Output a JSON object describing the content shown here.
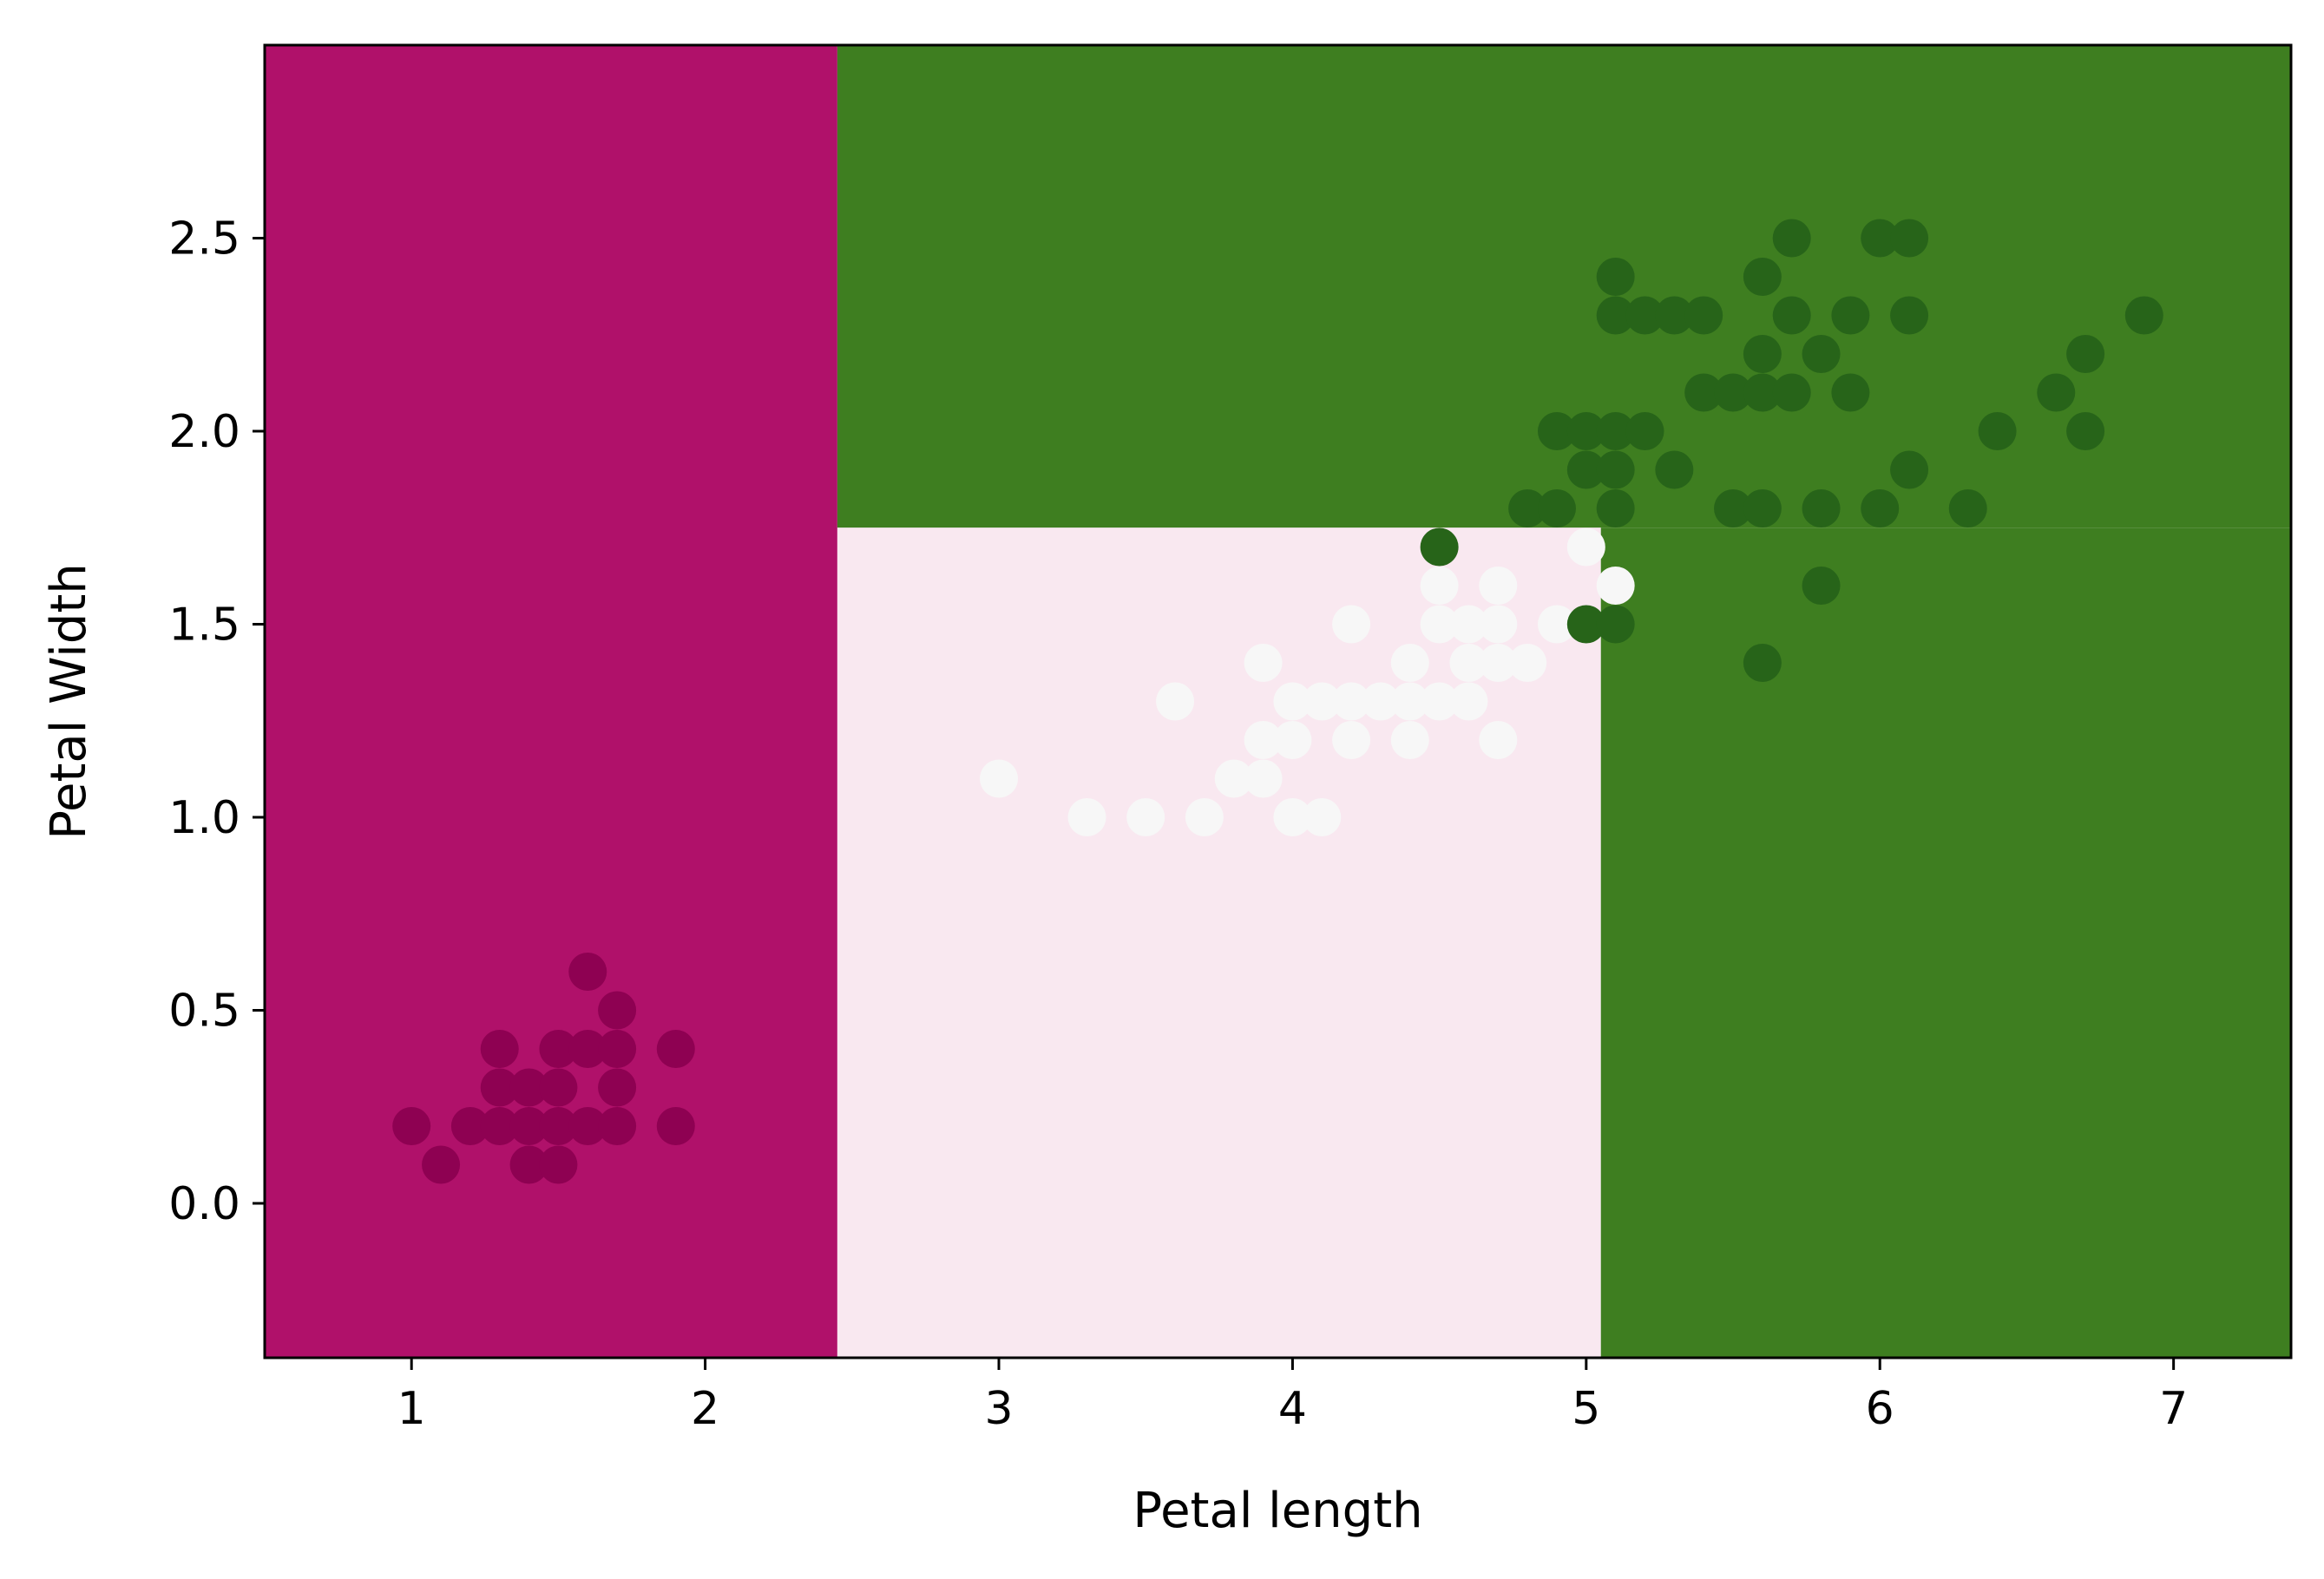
{
  "chart_data": {
    "type": "scatter",
    "xlabel": "Petal length",
    "ylabel": "Petal Width",
    "xlim": [
      0.5,
      7.4
    ],
    "ylim": [
      -0.4,
      3.0
    ],
    "x_ticks": [
      1,
      2,
      3,
      4,
      5,
      6,
      7
    ],
    "x_tick_labels": [
      "1",
      "2",
      "3",
      "4",
      "5",
      "6",
      "7"
    ],
    "y_ticks": [
      0.0,
      0.5,
      1.0,
      1.5,
      2.0,
      2.5
    ],
    "y_tick_labels": [
      "0.0",
      "0.5",
      "1.0",
      "1.5",
      "2.0",
      "2.5"
    ],
    "grid": false,
    "regions": [
      {
        "x": [
          0.5,
          2.45
        ],
        "y": [
          -0.4,
          3.0
        ],
        "color": "#b0116a"
      },
      {
        "x": [
          2.45,
          7.4
        ],
        "y": [
          1.75,
          3.0
        ],
        "color": "#3e7e20"
      },
      {
        "x": [
          2.45,
          5.05
        ],
        "y": [
          -0.4,
          1.75
        ],
        "color": "#f9e8f0"
      },
      {
        "x": [
          5.05,
          7.4
        ],
        "y": [
          -0.4,
          1.75
        ],
        "color": "#3e7e20"
      }
    ],
    "series": [
      {
        "color": "#8e0152",
        "points": [
          [
            1.0,
            0.2
          ],
          [
            1.1,
            0.1
          ],
          [
            1.2,
            0.2
          ],
          [
            1.3,
            0.2
          ],
          [
            1.3,
            0.3
          ],
          [
            1.3,
            0.4
          ],
          [
            1.4,
            0.1
          ],
          [
            1.4,
            0.2
          ],
          [
            1.4,
            0.3
          ],
          [
            1.5,
            0.1
          ],
          [
            1.5,
            0.2
          ],
          [
            1.5,
            0.3
          ],
          [
            1.5,
            0.4
          ],
          [
            1.6,
            0.2
          ],
          [
            1.6,
            0.4
          ],
          [
            1.6,
            0.6
          ],
          [
            1.7,
            0.2
          ],
          [
            1.7,
            0.3
          ],
          [
            1.7,
            0.4
          ],
          [
            1.7,
            0.5
          ],
          [
            1.9,
            0.2
          ],
          [
            1.9,
            0.4
          ]
        ]
      },
      {
        "color": "#f7f7f7",
        "points": [
          [
            3.0,
            1.1
          ],
          [
            3.3,
            1.0
          ],
          [
            3.5,
            1.0
          ],
          [
            3.6,
            1.3
          ],
          [
            3.7,
            1.0
          ],
          [
            3.8,
            1.1
          ],
          [
            3.9,
            1.1
          ],
          [
            3.9,
            1.2
          ],
          [
            3.9,
            1.4
          ],
          [
            4.0,
            1.0
          ],
          [
            4.0,
            1.2
          ],
          [
            4.0,
            1.3
          ],
          [
            4.1,
            1.0
          ],
          [
            4.1,
            1.3
          ],
          [
            4.2,
            1.2
          ],
          [
            4.2,
            1.3
          ],
          [
            4.2,
            1.5
          ],
          [
            4.3,
            1.3
          ],
          [
            4.4,
            1.2
          ],
          [
            4.4,
            1.3
          ],
          [
            4.4,
            1.4
          ],
          [
            4.5,
            1.3
          ],
          [
            4.5,
            1.5
          ],
          [
            4.5,
            1.6
          ],
          [
            4.6,
            1.3
          ],
          [
            4.6,
            1.4
          ],
          [
            4.6,
            1.5
          ],
          [
            4.7,
            1.2
          ],
          [
            4.7,
            1.4
          ],
          [
            4.7,
            1.5
          ],
          [
            4.7,
            1.6
          ],
          [
            4.8,
            1.4
          ],
          [
            4.9,
            1.5
          ],
          [
            5.0,
            1.7
          ],
          [
            5.1,
            1.6
          ]
        ]
      },
      {
        "color": "#276419",
        "points": [
          [
            4.5,
            1.7
          ],
          [
            4.8,
            1.8
          ],
          [
            4.9,
            1.8
          ],
          [
            4.9,
            2.0
          ],
          [
            5.0,
            1.5
          ],
          [
            5.0,
            1.9
          ],
          [
            5.0,
            2.0
          ],
          [
            5.1,
            1.5
          ],
          [
            5.1,
            1.8
          ],
          [
            5.1,
            1.9
          ],
          [
            5.1,
            2.0
          ],
          [
            5.1,
            2.3
          ],
          [
            5.1,
            2.4
          ],
          [
            5.2,
            2.0
          ],
          [
            5.2,
            2.3
          ],
          [
            5.3,
            1.9
          ],
          [
            5.3,
            2.3
          ],
          [
            5.4,
            2.1
          ],
          [
            5.4,
            2.3
          ],
          [
            5.5,
            1.8
          ],
          [
            5.5,
            2.1
          ],
          [
            5.6,
            1.4
          ],
          [
            5.6,
            1.8
          ],
          [
            5.6,
            2.1
          ],
          [
            5.6,
            2.2
          ],
          [
            5.6,
            2.4
          ],
          [
            5.7,
            2.1
          ],
          [
            5.7,
            2.3
          ],
          [
            5.7,
            2.5
          ],
          [
            5.8,
            1.6
          ],
          [
            5.8,
            1.8
          ],
          [
            5.8,
            2.2
          ],
          [
            5.9,
            2.1
          ],
          [
            5.9,
            2.3
          ],
          [
            6.0,
            1.8
          ],
          [
            6.0,
            2.5
          ],
          [
            6.1,
            1.9
          ],
          [
            6.1,
            2.3
          ],
          [
            6.1,
            2.5
          ],
          [
            6.3,
            1.8
          ],
          [
            6.4,
            2.0
          ],
          [
            6.6,
            2.1
          ],
          [
            6.7,
            2.0
          ],
          [
            6.7,
            2.2
          ],
          [
            6.9,
            2.3
          ]
        ]
      }
    ]
  }
}
